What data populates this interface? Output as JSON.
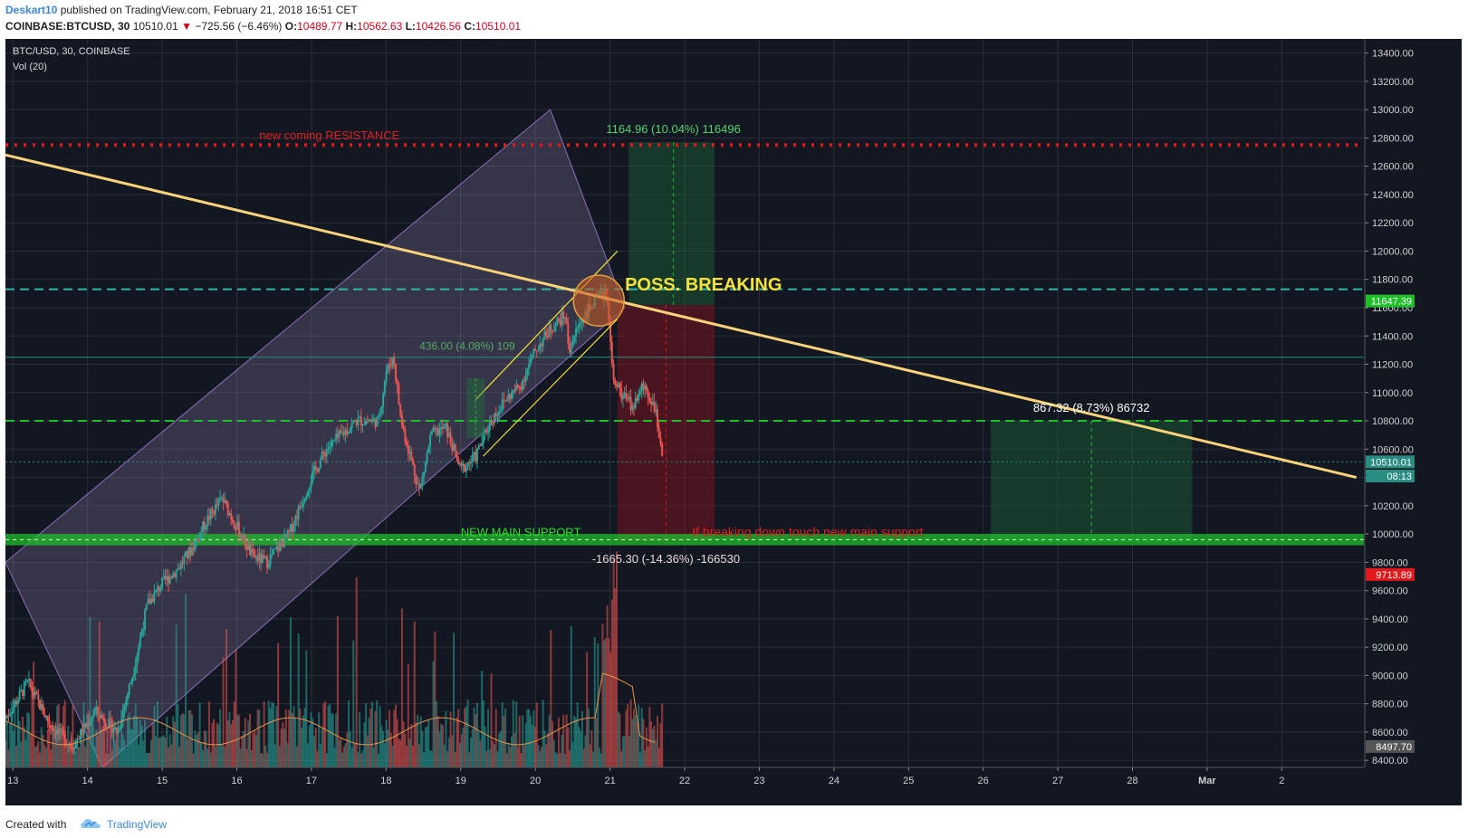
{
  "header": {
    "author": "Deskart10",
    "published": " published on TradingView.com, February 21, 2018 16:51 CET",
    "symbol": "COINBASE:BTCUSD, 30",
    "last": "10510.01",
    "change": "−725.56 (−6.46%)",
    "o_label": "O:",
    "o_value": "10489.77",
    "h_label": "H:",
    "h_value": "10562.63",
    "l_label": "L:",
    "l_value": "10426.56",
    "c_label": "C:",
    "c_value": "10510.01"
  },
  "legend": {
    "title": "BTC/USD, 30, COINBASE",
    "vol": "Vol (20)"
  },
  "footer": {
    "created": "Created with",
    "brand": "TradingView"
  },
  "colors": {
    "background": "#131722",
    "up": "#26a69a",
    "down": "#ef5350",
    "trendline": "#f9d27a",
    "support": "#1fbf2a",
    "resistance": "#e0191b",
    "channel": "#8b6fb8"
  },
  "chart_data": {
    "type": "candlestick",
    "symbol": "BTC/USD",
    "interval": "30",
    "exchange": "COINBASE",
    "ylim": [
      8350,
      13500
    ],
    "y_ticks": [
      8400,
      8600,
      8800,
      9000,
      9200,
      9400,
      9600,
      9800,
      10000,
      10200,
      10400,
      10600,
      10800,
      11000,
      11200,
      11400,
      11600,
      11800,
      12000,
      12200,
      12400,
      12600,
      12800,
      13000,
      13200,
      13400
    ],
    "y_tick_labels": [
      "8400.00",
      "8600.00",
      "8800.00",
      "9000.00",
      "9200.00",
      "9400.00",
      "9600.00",
      "9800.00",
      "10000.00",
      "10200.00",
      "10400.00",
      "10600.00",
      "10800.00",
      "11000.00",
      "11200.00",
      "11400.00",
      "11600.00",
      "11800.00",
      "12000.00",
      "12200.00",
      "12400.00",
      "12600.00",
      "12800.00",
      "13000.00",
      "13200.00",
      "13400.00"
    ],
    "x_range": [
      12.9,
      3.5
    ],
    "x_ticks": [
      {
        "t": 13,
        "label": "13"
      },
      {
        "t": 14,
        "label": "14"
      },
      {
        "t": 15,
        "label": "15"
      },
      {
        "t": 16,
        "label": "16"
      },
      {
        "t": 17,
        "label": "17"
      },
      {
        "t": 18,
        "label": "18"
      },
      {
        "t": 19,
        "label": "19"
      },
      {
        "t": 20,
        "label": "20"
      },
      {
        "t": 21,
        "label": "21"
      },
      {
        "t": 22,
        "label": "22"
      },
      {
        "t": 23,
        "label": "23"
      },
      {
        "t": 24,
        "label": "24"
      },
      {
        "t": 25,
        "label": "25"
      },
      {
        "t": 26,
        "label": "26"
      },
      {
        "t": 27,
        "label": "27"
      },
      {
        "t": 28,
        "label": "28"
      },
      {
        "t": 29,
        "label": "Mar"
      },
      {
        "t": 30,
        "label": "2"
      }
    ],
    "price_path": [
      [
        12.9,
        8700
      ],
      [
        13.2,
        8950
      ],
      [
        13.5,
        8650
      ],
      [
        13.8,
        8500
      ],
      [
        14.1,
        8750
      ],
      [
        14.4,
        8600
      ],
      [
        14.6,
        9000
      ],
      [
        14.8,
        9500
      ],
      [
        15.0,
        9650
      ],
      [
        15.2,
        9750
      ],
      [
        15.4,
        9900
      ],
      [
        15.6,
        10100
      ],
      [
        15.8,
        10250
      ],
      [
        16.0,
        10050
      ],
      [
        16.2,
        9850
      ],
      [
        16.4,
        9800
      ],
      [
        16.7,
        10000
      ],
      [
        17.0,
        10400
      ],
      [
        17.2,
        10600
      ],
      [
        17.4,
        10700
      ],
      [
        17.6,
        10800
      ],
      [
        17.9,
        10800
      ],
      [
        18.0,
        11150
      ],
      [
        18.1,
        11250
      ],
      [
        18.2,
        10800
      ],
      [
        18.35,
        10500
      ],
      [
        18.45,
        10300
      ],
      [
        18.6,
        10700
      ],
      [
        18.8,
        10750
      ],
      [
        19.0,
        10450
      ],
      [
        19.2,
        10550
      ],
      [
        19.4,
        10800
      ],
      [
        19.6,
        10950
      ],
      [
        19.8,
        11050
      ],
      [
        20.0,
        11300
      ],
      [
        20.2,
        11450
      ],
      [
        20.4,
        11550
      ],
      [
        20.45,
        11300
      ],
      [
        20.6,
        11500
      ],
      [
        20.8,
        11650
      ],
      [
        20.95,
        11700
      ],
      [
        21.0,
        11420
      ],
      [
        21.05,
        11100
      ],
      [
        21.15,
        11000
      ],
      [
        21.3,
        10900
      ],
      [
        21.45,
        11050
      ],
      [
        21.6,
        10900
      ],
      [
        21.7,
        10510
      ]
    ],
    "volume_ylim": [
      0,
      1200
    ],
    "resistance_level": 12750,
    "resistance_label": "new coming RESISTANCE",
    "support_level": 9960,
    "support_label": "NEW MAIN SUPPORT",
    "support_note": "If breaking down touch new main support",
    "dashed_levels": [
      {
        "value": 11730,
        "color": "#2fb7a8",
        "style": "dashed"
      },
      {
        "value": 10800,
        "color": "#1fbf2a",
        "style": "dashed"
      },
      {
        "value": 11250,
        "color": "#2a8d81",
        "style": "solid"
      },
      {
        "value": 10510,
        "color": "#2a8d81",
        "style": "dotted"
      }
    ],
    "trendline": {
      "from": [
        12.9,
        12680
      ],
      "to": [
        31.0,
        10400
      ]
    },
    "channel": {
      "outer_lower": [
        [
          12.9,
          8900
        ],
        [
          20.2,
          12650
        ]
      ],
      "outer_upper": [
        [
          12.9,
          8400
        ],
        [
          21.2,
          12450
        ]
      ],
      "corners": [
        [
          12.9,
          9800
        ],
        [
          20.2,
          13000
        ],
        [
          21.2,
          11600
        ],
        [
          14.2,
          8350
        ]
      ]
    },
    "inner_channel": {
      "upper": [
        [
          19.2,
          10950
        ],
        [
          21.1,
          12000
        ]
      ],
      "lower": [
        [
          19.3,
          10550
        ],
        [
          21.1,
          11520
        ]
      ]
    },
    "measure_small": {
      "label": "436.00 (4.08%) 109",
      "x": 19.2,
      "from": 10680,
      "to": 11100
    },
    "long_position_top": {
      "label": "1164.96 (10.04%) 116496",
      "x_from": 21.25,
      "x_to": 22.4,
      "from": 11620,
      "to": 12770
    },
    "short_position": {
      "label": "-1665.30 (-14.36%) -166530",
      "x_from": 21.1,
      "x_to": 22.4,
      "from": 11620,
      "to": 9950
    },
    "target_box": {
      "label": "867.32 (8.73%) 86732",
      "x_from": 26.1,
      "x_to": 28.8,
      "from": 9940,
      "to": 10800
    },
    "annotation": {
      "label": "POSS. BREAKING",
      "x": 20.9,
      "y": 11680
    },
    "price_labels": [
      {
        "value": 11647.39,
        "text": "11647.39",
        "color": "#1fbf2a"
      },
      {
        "value": 10510.01,
        "text": "10510.01",
        "color": "#2a8d81"
      },
      {
        "value": 10410,
        "text": "08:13",
        "color": "#2a8d81"
      },
      {
        "value": 9713.89,
        "text": "9713.89",
        "color": "#e0191b"
      },
      {
        "value": 8497.7,
        "text": "8497.70",
        "color": "#555555"
      }
    ]
  }
}
